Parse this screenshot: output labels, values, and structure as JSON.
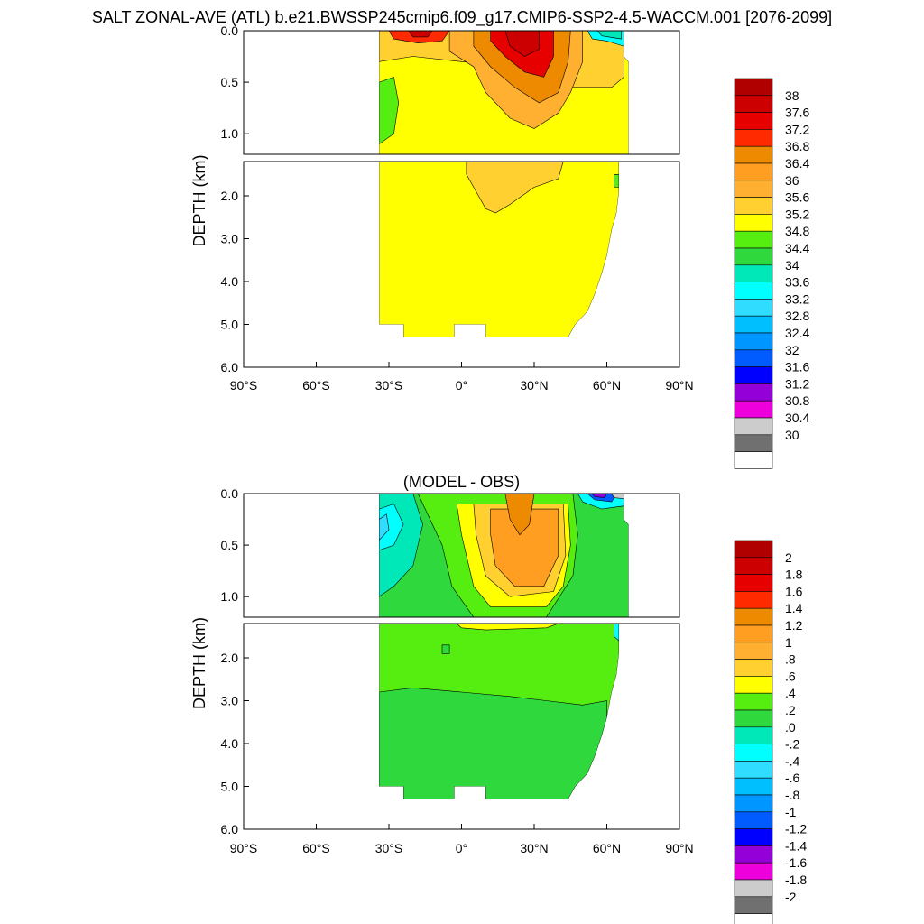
{
  "title": "SALT ZONAL-AVE (ATL) b.e21.BWSSP245cmip6.f09_g17.CMIP6-SSP2-4.5-WACCM.001 [2076-2099]",
  "chart_data": [
    {
      "type": "heatmap",
      "subtitle": "",
      "ylabel": "DEPTH (km)",
      "xlabel": "",
      "x_ticks": [
        "90°S",
        "60°S",
        "30°S",
        "0°",
        "30°N",
        "60°N",
        "90°N"
      ],
      "x_range": [
        -90,
        90
      ],
      "y_ticks_upper": [
        "0.0",
        "0.5",
        "1.0"
      ],
      "y_range_upper_km": [
        0,
        1.2
      ],
      "y_ticks_lower": [
        "2.0",
        "3.0",
        "4.0",
        "5.0",
        "6.0"
      ],
      "y_range_lower_km": [
        1.2,
        6.0
      ],
      "ocean_extent_lat": [
        -34,
        70
      ],
      "colorbar": {
        "labels": [
          "38",
          "37.6",
          "37.2",
          "36.8",
          "36.4",
          "36",
          "35.6",
          "35.2",
          "34.8",
          "34.4",
          "34",
          "33.6",
          "33.2",
          "32.8",
          "32.4",
          "32",
          "31.6",
          "31.2",
          "30.8",
          "30.4",
          "30"
        ],
        "colors": [
          "#b00000",
          "#cc0000",
          "#e60000",
          "#ff2a00",
          "#ee8a00",
          "#ff9e20",
          "#ffb030",
          "#ffd030",
          "#ffff00",
          "#55ee10",
          "#2fd83c",
          "#00e8b8",
          "#00ffff",
          "#30dcff",
          "#00bfff",
          "#0096ff",
          "#005cff",
          "#0000ff",
          "#9400d8",
          "#ee00dd",
          "#cccccc",
          "#707070",
          "#ffffff"
        ]
      },
      "dominant_values": {
        "surface_subtropical_north_max": 38,
        "deep_ocean": 34.8,
        "southern_intermediate": 34.4
      }
    },
    {
      "type": "heatmap",
      "subtitle": "(MODEL - OBS)",
      "ylabel": "DEPTH (km)",
      "xlabel": "",
      "x_ticks": [
        "90°S",
        "60°S",
        "30°S",
        "0°",
        "30°N",
        "60°N",
        "90°N"
      ],
      "x_range": [
        -90,
        90
      ],
      "y_ticks_upper": [
        "0.0",
        "0.5",
        "1.0"
      ],
      "y_range_upper_km": [
        0,
        1.2
      ],
      "y_ticks_lower": [
        "2.0",
        "3.0",
        "4.0",
        "5.0",
        "6.0"
      ],
      "y_range_lower_km": [
        1.2,
        6.0
      ],
      "ocean_extent_lat": [
        -34,
        70
      ],
      "colorbar": {
        "labels": [
          "2",
          "1.8",
          "1.6",
          "1.4",
          "1.2",
          "1",
          ".8",
          ".6",
          ".4",
          ".2",
          ".0",
          "-.2",
          "-.4",
          "-.6",
          "-.8",
          "-1",
          "-1.2",
          "-1.4",
          "-1.6",
          "-1.8",
          "-2"
        ],
        "colors": [
          "#b00000",
          "#cc0000",
          "#e60000",
          "#ff2a00",
          "#ee8a00",
          "#ff9e20",
          "#ffb030",
          "#ffd030",
          "#ffff00",
          "#55ee10",
          "#2fd83c",
          "#00e8b8",
          "#00ffff",
          "#30dcff",
          "#00bfff",
          "#0096ff",
          "#005cff",
          "#0000ff",
          "#9400d8",
          "#ee00dd",
          "#cccccc",
          "#707070",
          "#ffffff"
        ]
      },
      "dominant_values": {
        "upper_subtropical_north_max": 1.2,
        "deep_ocean": 0.2,
        "southern_upper_min": -0.6
      }
    }
  ]
}
